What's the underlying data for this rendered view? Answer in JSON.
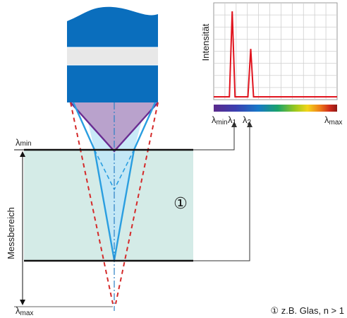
{
  "diagram": {
    "chart_ylabel": "Intensität",
    "lambda_symbol": "λ",
    "spectrum_labels": {
      "min_sub": "min",
      "l1_sub": "1",
      "l2_sub": "2",
      "max_sub": "max"
    },
    "left_labels": {
      "top_sub": "min",
      "bottom_sub": "max"
    },
    "range_label": "Messbereich",
    "marker": "①",
    "footnote": "① z.B. Glas, n > 1"
  },
  "colors": {
    "probe_blue": "#0a6ebd",
    "probe_band": "#e8e8e8",
    "cone_purple": "#b9a2cc",
    "cone_purple_edge": "#6a2c91",
    "beam_blue": "#2a9ee0",
    "beam_fill": "#bfe6f7",
    "red_dashed": "#d42a2a",
    "sample_fill": "#d4ebe7",
    "spectrum_peak": "#e0141e"
  },
  "chart_data": {
    "type": "line",
    "ylabel": "Intensität",
    "x_range": [
      0,
      1
    ],
    "series": [
      {
        "peaks": [
          {
            "x": 0.15,
            "y": 1.0
          },
          {
            "x": 0.3,
            "y": 0.56
          }
        ]
      }
    ],
    "grid": true
  }
}
